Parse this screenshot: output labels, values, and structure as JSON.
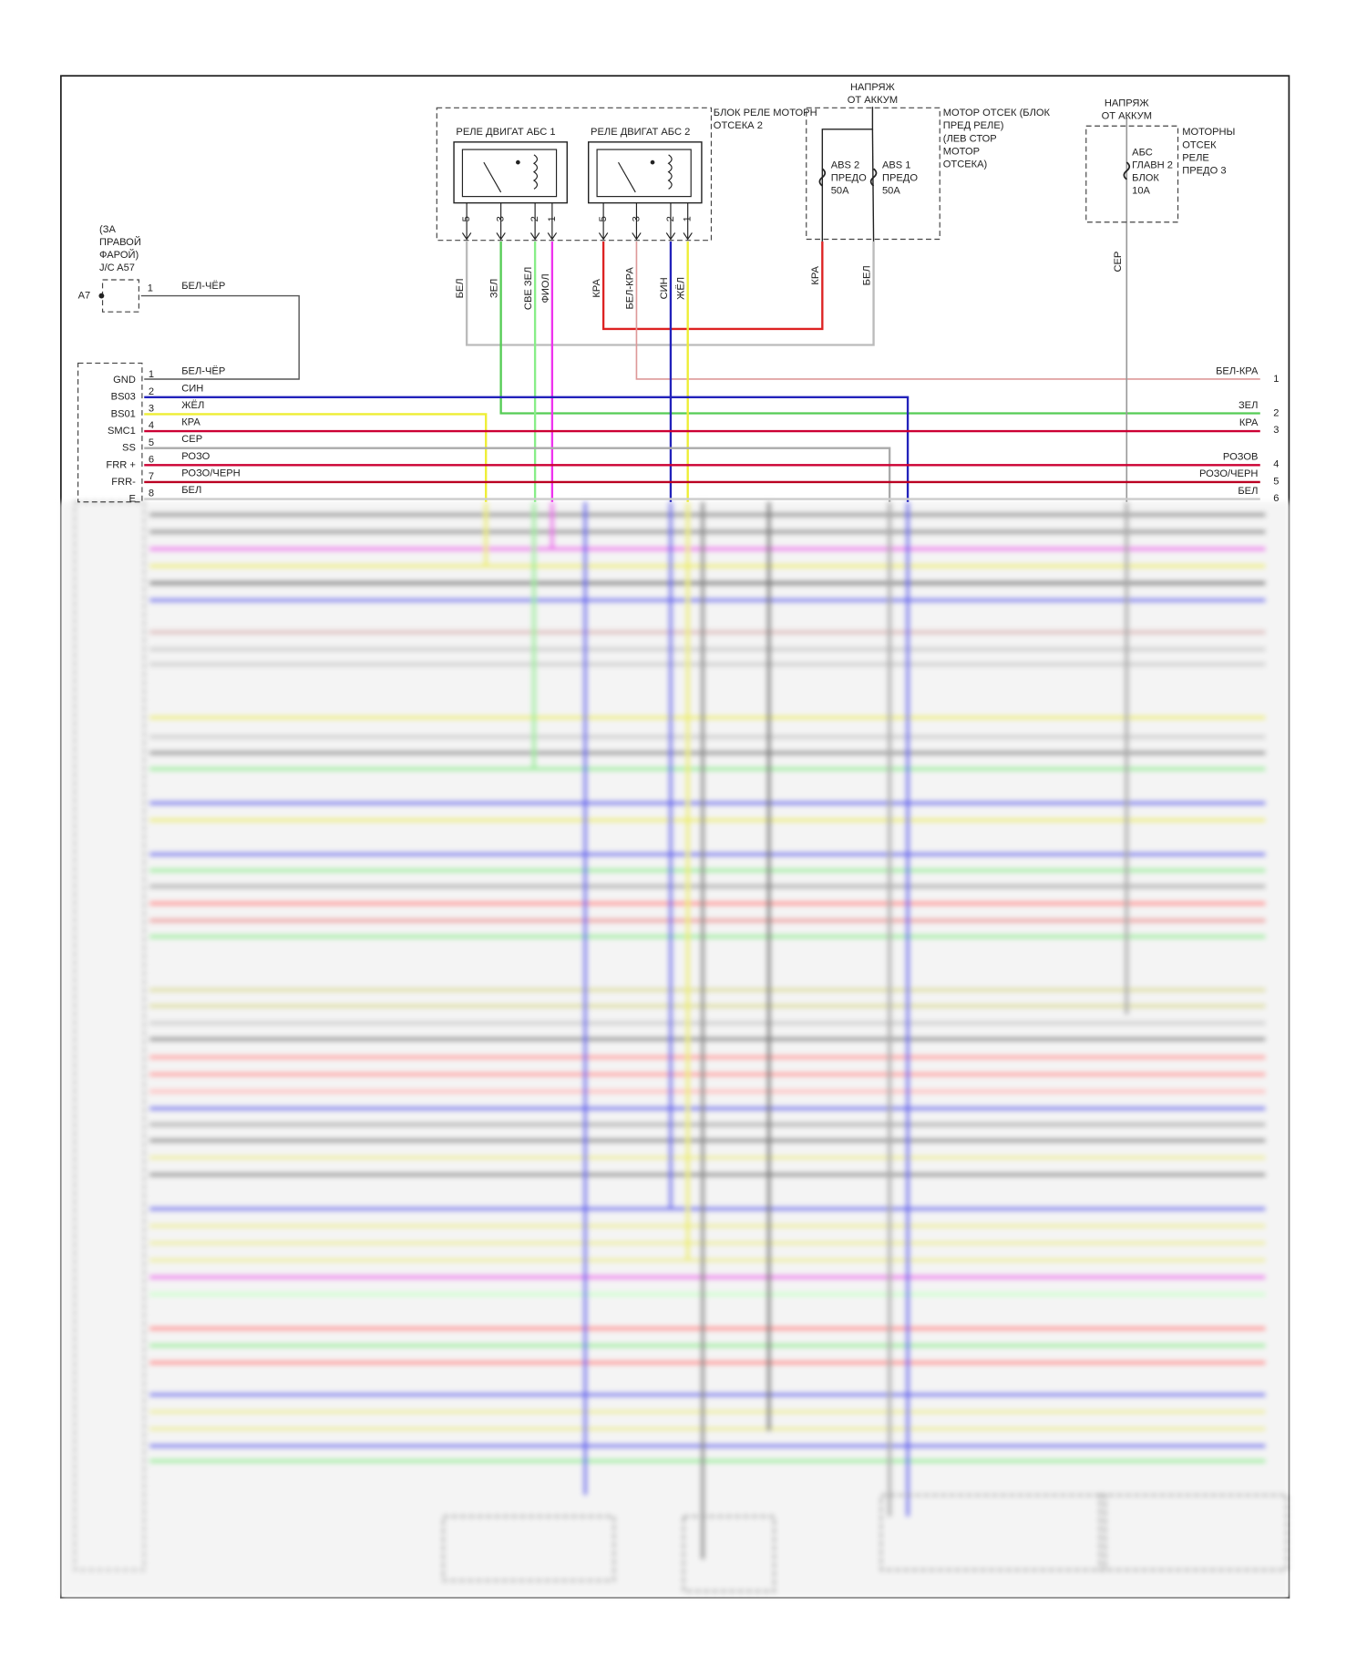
{
  "splice": {
    "lines": [
      "(ЗА",
      "ПРАВОЙ",
      "ФАРОЙ)",
      "J/C A57"
    ],
    "connector": "A7",
    "pin": "1",
    "wire": "БЕЛ-ЧЁР"
  },
  "relay_block": {
    "title": [
      "БЛОК РЕЛЕ МОТОРН",
      "ОТСЕКА 2"
    ],
    "relays": [
      {
        "label": "РЕЛЕ ДВИГАТ АБС 1",
        "pins": [
          "5",
          "3",
          "2",
          "1"
        ],
        "wires": [
          "БЕЛ",
          "ЗЕЛ",
          "СВЕ ЗЕЛ",
          "ФИОЛ"
        ]
      },
      {
        "label": "РЕЛЕ ДВИГАТ АБС 2",
        "pins": [
          "5",
          "3",
          "2",
          "1"
        ],
        "wires": [
          "КРА",
          "БЕЛ-КРА",
          "СИН",
          "ЖЁЛ"
        ]
      }
    ]
  },
  "fuse_block": {
    "source": [
      "НАПРЯЖ",
      "ОТ АККУМ"
    ],
    "title": [
      "МОТОР ОТСЕК (БЛОК",
      "ПРЕД РЕЛЕ)",
      "(ЛЕВ СТОР",
      "МОТОР",
      "ОТСЕКА)"
    ],
    "fuses": [
      [
        "ABS 2",
        "ПРЕДО",
        "50A"
      ],
      [
        "ABS 1",
        "ПРЕДО",
        "50A"
      ]
    ],
    "wires": [
      "КРА",
      "БЕЛ"
    ]
  },
  "fuse_block_2": {
    "source": [
      "НАПРЯЖ",
      "ОТ АККУМ"
    ],
    "title": [
      "МОТОРНЫ",
      "ОТСЕК",
      "РЕЛЕ",
      "ПРЕДО 3"
    ],
    "fuse": [
      "АБС",
      "ГЛАВН 2",
      "БЛОК",
      "10A"
    ],
    "wire": "СЕР"
  },
  "connector": {
    "pins": [
      {
        "name": "GND",
        "number": "1",
        "wire": "БЕЛ-ЧЁР"
      },
      {
        "name": "BS03",
        "number": "2",
        "wire": "СИН"
      },
      {
        "name": "BS01",
        "number": "3",
        "wire": "ЖЁЛ"
      },
      {
        "name": "SMC1",
        "number": "4",
        "wire": "КРА"
      },
      {
        "name": "SS",
        "number": "5",
        "wire": "СЕР"
      },
      {
        "name": "FRR +",
        "number": "6",
        "wire": "РОЗО"
      },
      {
        "name": "FRR-",
        "number": "7",
        "wire": "РОЗО/ЧЕРН"
      },
      {
        "name": "E",
        "number": "8",
        "wire": "БЕЛ"
      }
    ]
  },
  "outputs": [
    {
      "wire": "БЕЛ-КРА",
      "number": "1"
    },
    {
      "wire": "ЗЕЛ",
      "number": "2"
    },
    {
      "wire": "КРА",
      "number": "3"
    },
    {
      "wire": "РОЗОВ",
      "number": "4"
    },
    {
      "wire": "РОЗО/ЧЕРН",
      "number": "5"
    },
    {
      "wire": "БЕЛ",
      "number": "6"
    }
  ]
}
